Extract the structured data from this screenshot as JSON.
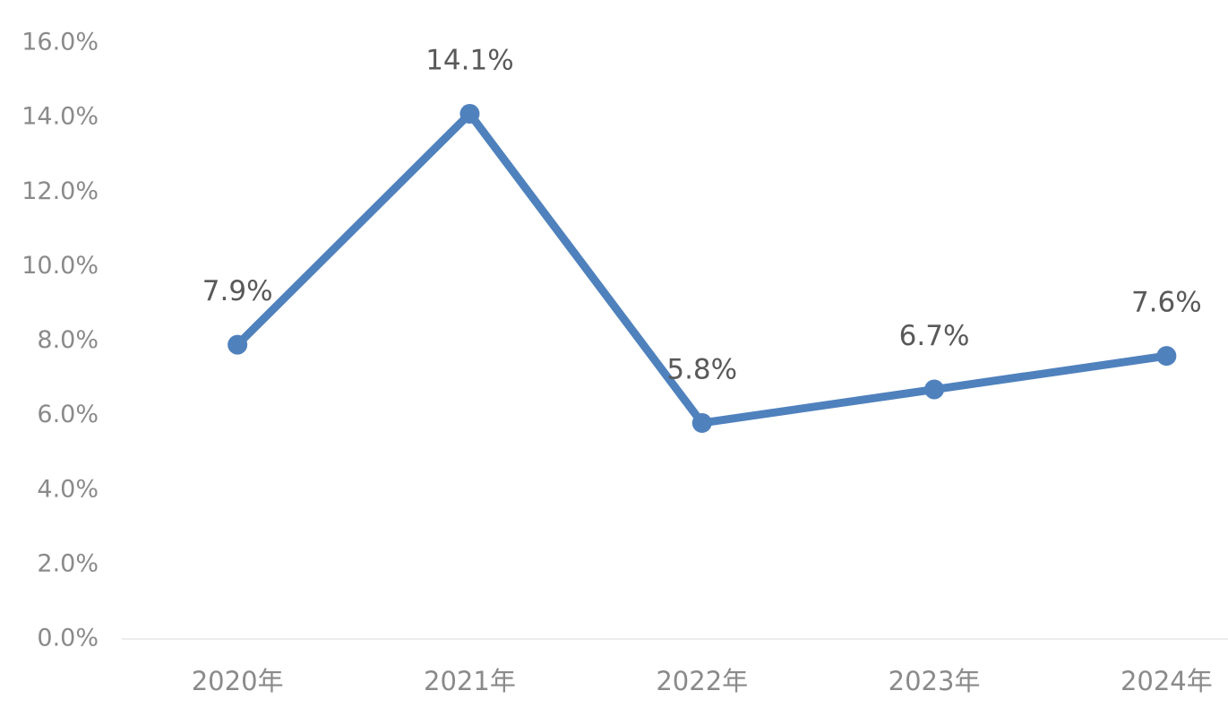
{
  "chart_data": {
    "type": "line",
    "categories": [
      "2020年",
      "2021年",
      "2022年",
      "2023年",
      "2024年"
    ],
    "series": [
      {
        "color": "#4f81bd",
        "values": [
          7.9,
          14.1,
          5.8,
          6.7,
          7.6
        ],
        "value_labels": [
          "7.9%",
          "14.1%",
          "5.8%",
          "6.7%",
          "7.6%"
        ]
      }
    ],
    "ylim": [
      0,
      16
    ],
    "yticks": [
      {
        "value": 0,
        "label": "0.0%"
      },
      {
        "value": 2,
        "label": "2.0%"
      },
      {
        "value": 4,
        "label": "4.0%"
      },
      {
        "value": 6,
        "label": "6.0%"
      },
      {
        "value": 8,
        "label": "8.0%"
      },
      {
        "value": 10,
        "label": "10.0%"
      },
      {
        "value": 12,
        "label": "12.0%"
      },
      {
        "value": 14,
        "label": "14.0%"
      },
      {
        "value": 16,
        "label": "16.0%"
      }
    ]
  }
}
